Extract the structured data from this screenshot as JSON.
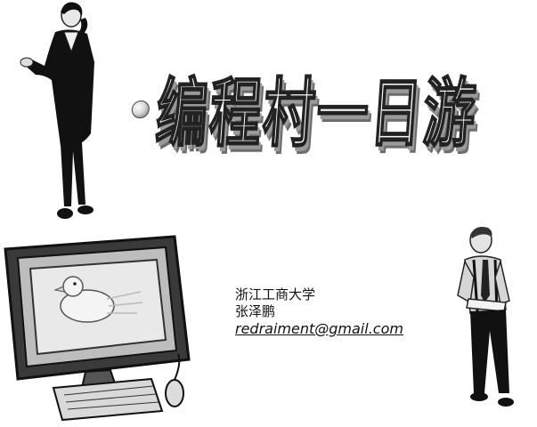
{
  "title": "编程村一日游",
  "author": {
    "university": "浙江工商大学",
    "name": "张泽鹏",
    "email": "redraiment@gmail.com"
  }
}
